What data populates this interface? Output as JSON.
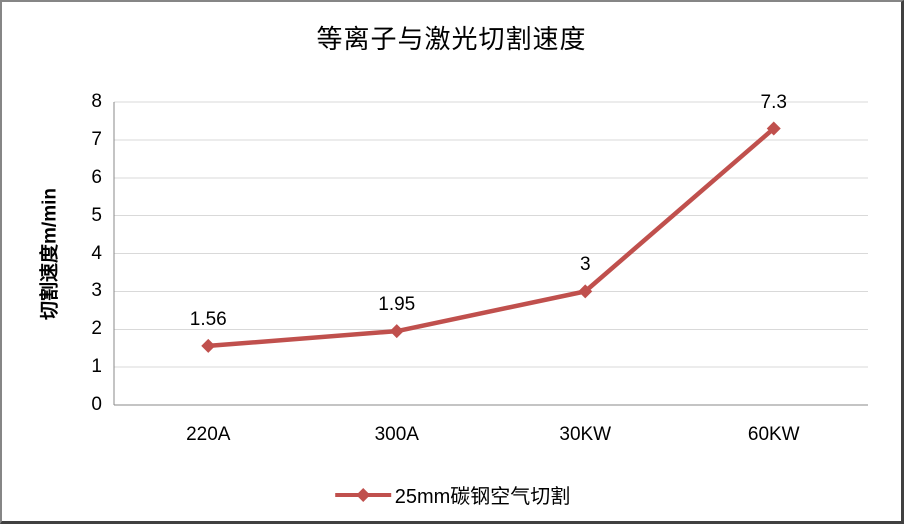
{
  "chart_data": {
    "type": "line",
    "title": "等离子与激光切割速度",
    "xlabel": "",
    "ylabel": "切割速度m/min",
    "categories": [
      "220A",
      "300A",
      "30KW",
      "60KW"
    ],
    "series": [
      {
        "name": "25mm碳钢空气切割",
        "values": [
          1.56,
          1.95,
          3,
          7.3
        ],
        "labels": [
          "1.56",
          "1.95",
          "3",
          "7.3"
        ],
        "color": "#C0504D",
        "marker": "diamond"
      }
    ],
    "ylim": [
      0,
      8
    ],
    "yticks": [
      0,
      1,
      2,
      3,
      4,
      5,
      6,
      7,
      8
    ],
    "grid": true,
    "legend_position": "bottom",
    "colors": {
      "gridline": "#D9D9D9",
      "axis": "#898989",
      "text": "#000000",
      "background": "#FFFFFF"
    }
  }
}
